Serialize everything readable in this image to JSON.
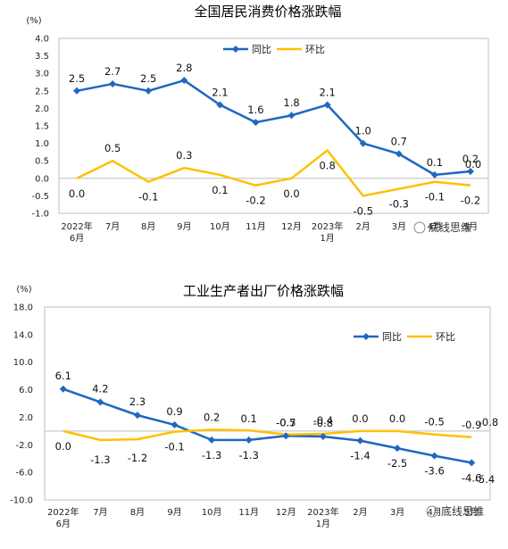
{
  "watermark": "底线思维",
  "chart_data": [
    {
      "type": "line",
      "title": "全国居民消费价格涨跌幅",
      "unit": "(%)",
      "categories": [
        "2022年\n6月",
        "7月",
        "8月",
        "9月",
        "10月",
        "11月",
        "12月",
        "2023年\n1月",
        "2月",
        "3月",
        "4月",
        "5月"
      ],
      "ylim": [
        -1.0,
        4.0
      ],
      "yticks": [
        "4.0",
        "3.5",
        "3.0",
        "2.5",
        "2.0",
        "1.5",
        "1.0",
        "0.5",
        "0.0",
        "-0.5",
        "-1.0"
      ],
      "legend_position": "top",
      "series": [
        {
          "name": "同比",
          "color": "#1F67C0",
          "marker": "diamond",
          "values": [
            2.5,
            2.7,
            2.5,
            2.8,
            2.1,
            1.6,
            1.8,
            2.1,
            1.0,
            0.7,
            0.1,
            0.2
          ],
          "labels": [
            "2.5",
            "2.7",
            "2.5",
            "2.8",
            "2.1",
            "1.6",
            "1.8",
            "2.1",
            "1.0",
            "0.7",
            "0.1",
            "0.2"
          ]
        },
        {
          "name": "环比",
          "color": "#FFC000",
          "marker": "none",
          "values": [
            0.0,
            0.5,
            -0.1,
            0.3,
            0.1,
            -0.2,
            0.0,
            0.8,
            -0.5,
            -0.3,
            -0.1,
            -0.2
          ],
          "labels": [
            "0.0",
            "0.5",
            "-0.1",
            "0.3",
            "0.1",
            "-0.2",
            "0.0",
            "0.8",
            "-0.5",
            "-0.3",
            "-0.1",
            "-0.2"
          ]
        }
      ],
      "extra_labels": [
        "0.0"
      ]
    },
    {
      "type": "line",
      "title": "工业生产者出厂价格涨跌幅",
      "unit": "(%)",
      "categories": [
        "2022年\n6月",
        "7月",
        "8月",
        "9月",
        "10月",
        "11月",
        "12月",
        "2023年\n1月",
        "2月",
        "3月",
        "4月",
        "5月"
      ],
      "ylim": [
        -10.0,
        18.0
      ],
      "yticks": [
        "18.0",
        "14.0",
        "10.0",
        "6.0",
        "2.0",
        "-2.0",
        "-6.0",
        "-10.0"
      ],
      "legend_position": "top-right",
      "series": [
        {
          "name": "同比",
          "color": "#1F67C0",
          "marker": "diamond",
          "values": [
            6.1,
            4.2,
            2.3,
            0.9,
            -1.3,
            -1.3,
            -0.7,
            -0.8,
            -1.4,
            -2.5,
            -3.6,
            -4.6
          ],
          "labels": [
            "6.1",
            "4.2",
            "2.3",
            "0.9",
            "-1.3",
            "-1.3",
            "-0.7",
            "-0.8",
            "-1.4",
            "-2.5",
            "-3.6",
            "-4.6"
          ]
        },
        {
          "name": "环比",
          "color": "#FFC000",
          "marker": "none",
          "values": [
            0.0,
            -1.3,
            -1.2,
            -0.1,
            0.2,
            0.1,
            -0.5,
            -0.4,
            0.0,
            0.0,
            -0.5,
            -0.9
          ],
          "labels": [
            "0.0",
            "-1.3",
            "-1.2",
            "-0.1",
            "0.2",
            "0.1",
            "-0.5",
            "-0.4",
            "0.0",
            "0.0",
            "-0.5",
            "-0.9"
          ]
        }
      ],
      "extra_labels": [
        "-5.4",
        "-0.8"
      ]
    }
  ]
}
